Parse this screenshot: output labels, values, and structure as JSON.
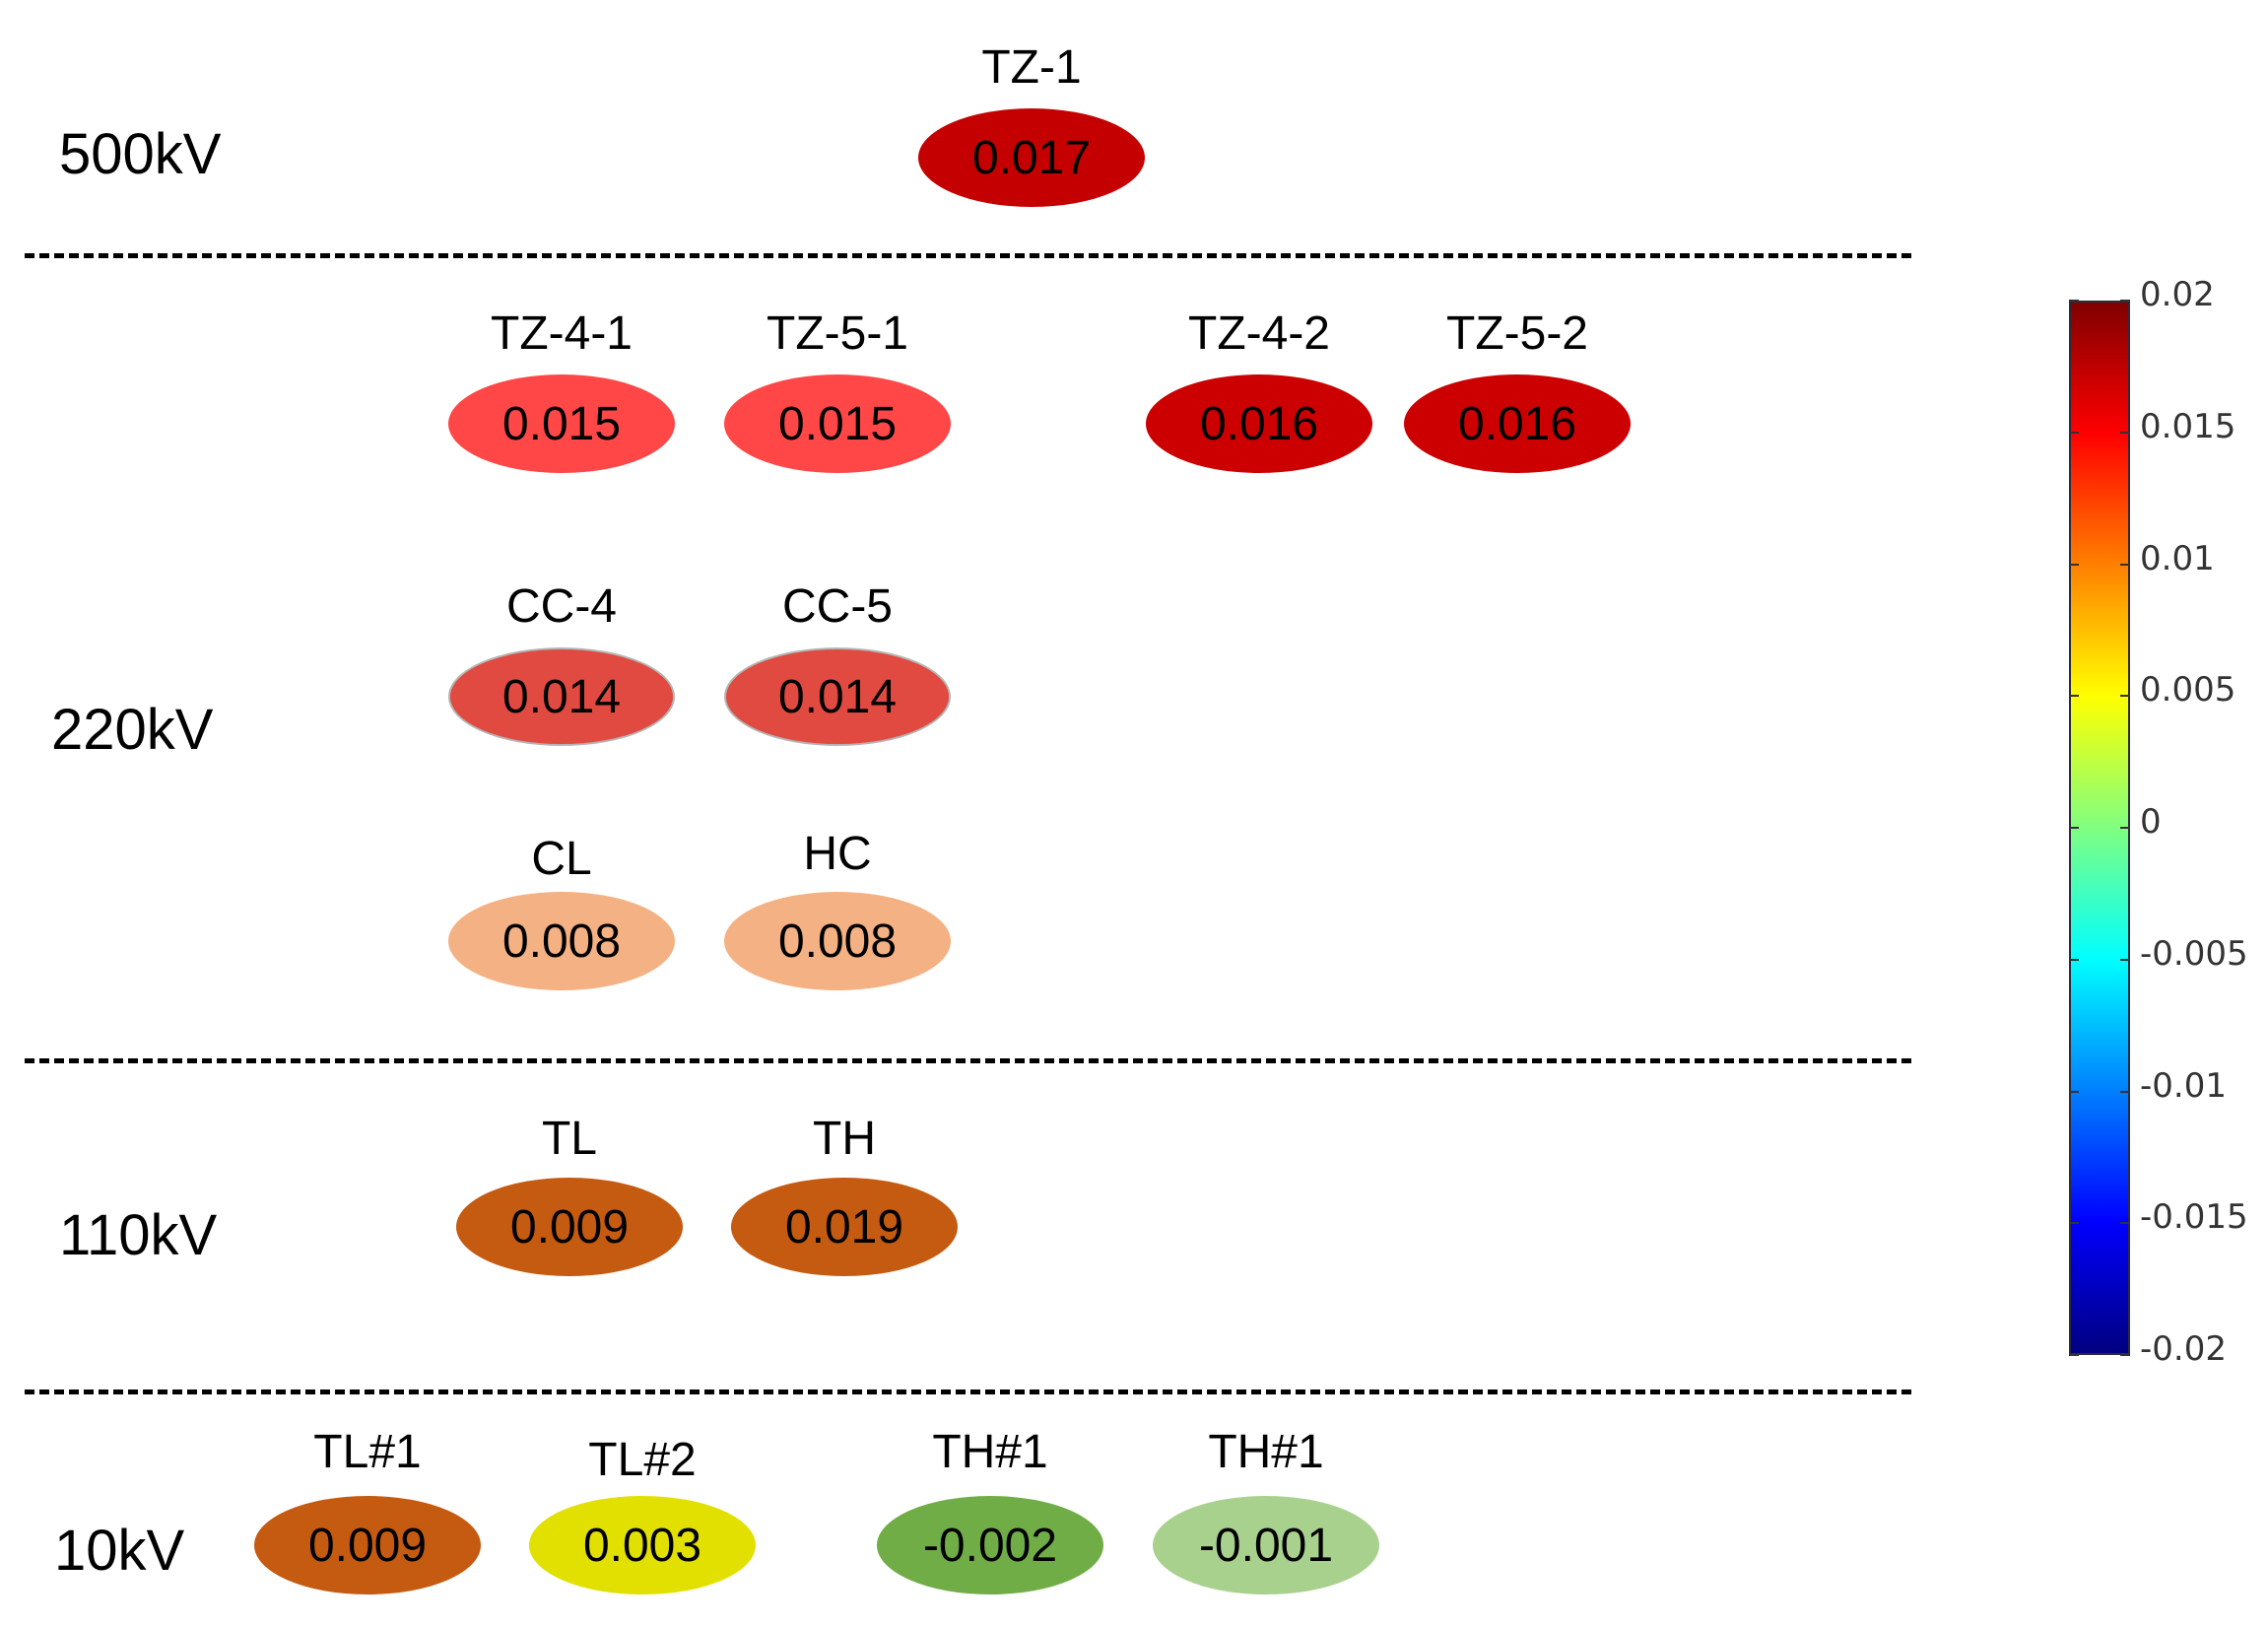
{
  "levels": [
    {
      "label": "500kV"
    },
    {
      "label": "220kV"
    },
    {
      "label": "110kV"
    },
    {
      "label": "10kV"
    }
  ],
  "nodes": [
    {
      "name": "TZ-1",
      "value": "0.017",
      "color": "#c40000"
    },
    {
      "name": "TZ-4-1",
      "value": "0.015",
      "color": "#ff4747"
    },
    {
      "name": "TZ-5-1",
      "value": "0.015",
      "color": "#ff4747"
    },
    {
      "name": "TZ-4-2",
      "value": "0.016",
      "color": "#cc0000"
    },
    {
      "name": "TZ-5-2",
      "value": "0.016",
      "color": "#cc0000"
    },
    {
      "name": "CC-4",
      "value": "0.014",
      "color": "#e04a40"
    },
    {
      "name": "CC-5",
      "value": "0.014",
      "color": "#e04a40"
    },
    {
      "name": "CL",
      "value": "0.008",
      "color": "#f4b183"
    },
    {
      "name": "HC",
      "value": "0.008",
      "color": "#f4b183"
    },
    {
      "name": "TL",
      "value": "0.009",
      "color": "#c55a11"
    },
    {
      "name": "TH",
      "value": "0.019",
      "color": "#c55a11"
    },
    {
      "name": "TL#1",
      "value": "0.009",
      "color": "#c55a11"
    },
    {
      "name": "TL#2",
      "value": "0.003",
      "color": "#e2e000"
    },
    {
      "name": "TH#1",
      "value": "-0.002",
      "color": "#70ad47"
    },
    {
      "name": "TH#1",
      "value": "-0.001",
      "color": "#a9d18e"
    }
  ],
  "colorbar": {
    "max": 0.02,
    "min": -0.02,
    "ticks": [
      "0.02",
      "0.015",
      "0.01",
      "0.005",
      "0",
      "-0.005",
      "-0.01",
      "-0.015",
      "-0.02"
    ]
  }
}
